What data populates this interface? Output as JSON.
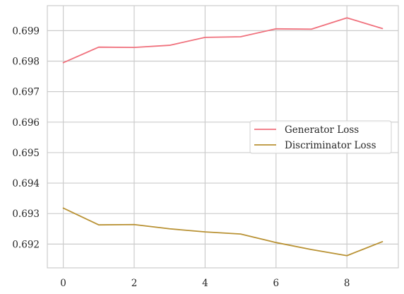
{
  "chart_data": {
    "type": "line",
    "title": "",
    "xlabel": "",
    "ylabel": "",
    "x": [
      0,
      1,
      2,
      3,
      4,
      5,
      6,
      7,
      8,
      9
    ],
    "xlim": [
      -0.45,
      9.45
    ],
    "ylim": [
      0.69122,
      0.69982
    ],
    "x_ticks": [
      0,
      2,
      4,
      6,
      8
    ],
    "x_tick_labels": [
      "0",
      "2",
      "4",
      "6",
      "8"
    ],
    "y_ticks": [
      0.692,
      0.693,
      0.694,
      0.695,
      0.696,
      0.697,
      0.698,
      0.699
    ],
    "y_tick_labels": [
      "0.692",
      "0.693",
      "0.694",
      "0.695",
      "0.696",
      "0.697",
      "0.698",
      "0.699"
    ],
    "grid": true,
    "legend_position": "center-right",
    "series": [
      {
        "name": "Generator Loss",
        "color": "#f0717d",
        "values": [
          0.69795,
          0.69846,
          0.69845,
          0.69852,
          0.69878,
          0.6988,
          0.69906,
          0.69905,
          0.69942,
          0.69907
        ]
      },
      {
        "name": "Discriminator Loss",
        "color": "#b99234",
        "values": [
          0.69318,
          0.69263,
          0.69264,
          0.6925,
          0.6924,
          0.69233,
          0.69205,
          0.69182,
          0.69162,
          0.69208
        ]
      }
    ]
  }
}
